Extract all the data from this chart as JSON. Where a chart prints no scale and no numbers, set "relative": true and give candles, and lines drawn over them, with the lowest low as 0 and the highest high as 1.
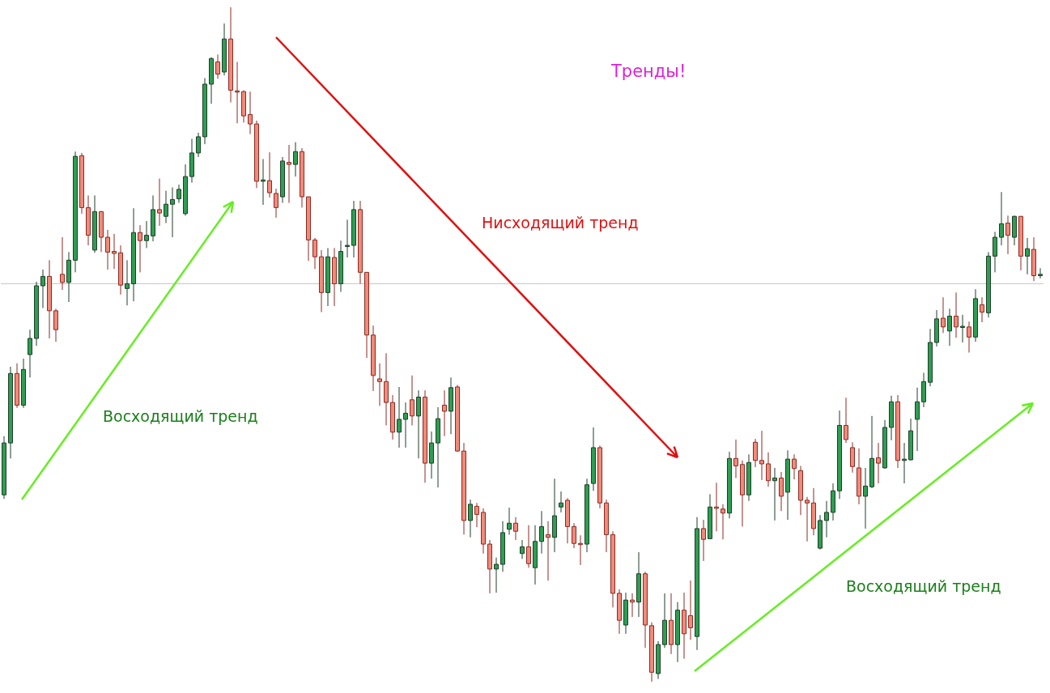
{
  "chart_data": {
    "type": "candlestick",
    "relative": true,
    "title": "Тренды!",
    "annotations": [
      "Нисходящий тренд",
      "Восходящий тренд",
      "Восходящий тренд"
    ],
    "ref_lines": [
      {
        "axis": "y",
        "value": 0.594,
        "color": "#c8c8c8"
      }
    ],
    "categories": [
      null,
      null,
      null,
      null,
      null,
      null,
      null,
      null,
      null,
      null,
      null,
      null,
      null,
      null,
      null,
      null,
      null,
      null,
      null,
      null,
      null,
      null,
      null,
      null,
      null,
      null,
      null,
      null,
      null,
      null,
      null,
      null,
      null,
      null,
      null,
      null,
      null,
      null,
      null,
      null,
      null,
      null,
      null,
      null,
      null,
      null,
      null,
      null,
      null,
      null,
      null,
      null,
      null,
      null,
      null,
      null,
      null,
      null,
      null,
      null,
      null,
      null,
      null,
      null,
      null,
      null,
      null,
      null,
      null,
      null,
      null,
      null,
      null,
      null,
      null,
      null,
      null,
      null,
      null,
      null,
      null,
      null,
      null,
      null,
      null,
      null,
      null,
      null,
      null,
      null,
      null,
      null,
      null,
      null,
      null,
      null,
      null,
      null,
      null,
      null,
      null,
      null,
      null,
      null,
      null,
      null,
      null,
      null,
      null,
      null,
      null,
      null,
      null,
      null,
      null,
      null,
      null,
      null,
      null,
      null,
      null,
      null,
      null,
      null,
      null,
      null,
      null,
      null,
      null,
      null,
      null,
      null,
      null,
      null,
      null,
      null,
      null,
      null,
      null,
      null,
      null,
      null,
      null,
      null,
      null,
      null,
      null,
      null,
      null,
      null,
      null,
      null,
      null,
      null,
      null,
      null,
      null,
      null,
      null,
      null,
      null
    ],
    "ohlc": [
      [
        0.277,
        0.364,
        0.271,
        0.354
      ],
      [
        0.354,
        0.467,
        0.331,
        0.457
      ],
      [
        0.457,
        0.472,
        0.406,
        0.41
      ],
      [
        0.41,
        0.479,
        0.406,
        0.463
      ],
      [
        0.485,
        0.522,
        0.451,
        0.509
      ],
      [
        0.509,
        0.593,
        0.498,
        0.587
      ],
      [
        0.587,
        0.611,
        0.554,
        0.601
      ],
      [
        0.601,
        0.625,
        0.509,
        0.55
      ],
      [
        0.55,
        0.553,
        0.504,
        0.522
      ],
      [
        0.604,
        0.659,
        0.581,
        0.592
      ],
      [
        0.592,
        0.637,
        0.563,
        0.625
      ],
      [
        0.625,
        0.786,
        0.607,
        0.779
      ],
      [
        0.78,
        0.784,
        0.694,
        0.703
      ],
      [
        0.703,
        0.721,
        0.647,
        0.662
      ],
      [
        0.64,
        0.721,
        0.636,
        0.697
      ],
      [
        0.697,
        0.698,
        0.637,
        0.659
      ],
      [
        0.659,
        0.67,
        0.611,
        0.637
      ],
      [
        0.638,
        0.664,
        0.612,
        0.635
      ],
      [
        0.636,
        0.647,
        0.574,
        0.588
      ],
      [
        0.583,
        0.625,
        0.558,
        0.59
      ],
      [
        0.59,
        0.702,
        0.564,
        0.666
      ],
      [
        0.666,
        0.677,
        0.607,
        0.654
      ],
      [
        0.654,
        0.683,
        0.643,
        0.662
      ],
      [
        0.661,
        0.721,
        0.653,
        0.7
      ],
      [
        0.7,
        0.746,
        0.676,
        0.695
      ],
      [
        0.69,
        0.728,
        0.68,
        0.708
      ],
      [
        0.708,
        0.733,
        0.659,
        0.715
      ],
      [
        0.716,
        0.737,
        0.71,
        0.73
      ],
      [
        0.694,
        0.767,
        0.691,
        0.749
      ],
      [
        0.749,
        0.805,
        0.74,
        0.784
      ],
      [
        0.784,
        0.814,
        0.778,
        0.808
      ],
      [
        0.808,
        0.895,
        0.797,
        0.886
      ],
      [
        0.886,
        0.926,
        0.857,
        0.924
      ],
      [
        0.919,
        0.93,
        0.894,
        0.901
      ],
      [
        0.904,
        0.976,
        0.899,
        0.953
      ],
      [
        0.953,
        1.0,
        0.859,
        0.877
      ],
      [
        0.876,
        0.919,
        0.828,
        0.875
      ],
      [
        0.875,
        0.877,
        0.829,
        0.839
      ],
      [
        0.841,
        0.875,
        0.812,
        0.827
      ],
      [
        0.827,
        0.832,
        0.732,
        0.742
      ],
      [
        0.742,
        0.775,
        0.707,
        0.744
      ],
      [
        0.743,
        0.785,
        0.718,
        0.725
      ],
      [
        0.724,
        0.731,
        0.688,
        0.703
      ],
      [
        0.719,
        0.778,
        0.71,
        0.772
      ],
      [
        0.77,
        0.796,
        0.71,
        0.767
      ],
      [
        0.767,
        0.8,
        0.749,
        0.786
      ],
      [
        0.786,
        0.791,
        0.703,
        0.719
      ],
      [
        0.719,
        0.719,
        0.624,
        0.655
      ],
      [
        0.655,
        0.658,
        0.612,
        0.63
      ],
      [
        0.63,
        0.64,
        0.548,
        0.577
      ],
      [
        0.577,
        0.643,
        0.557,
        0.63
      ],
      [
        0.629,
        0.643,
        0.557,
        0.59
      ],
      [
        0.59,
        0.654,
        0.578,
        0.638
      ],
      [
        0.646,
        0.685,
        0.629,
        0.647
      ],
      [
        0.647,
        0.713,
        0.629,
        0.7
      ],
      [
        0.7,
        0.713,
        0.59,
        0.607
      ],
      [
        0.607,
        0.607,
        0.48,
        0.514
      ],
      [
        0.514,
        0.528,
        0.431,
        0.454
      ],
      [
        0.449,
        0.472,
        0.409,
        0.445
      ],
      [
        0.445,
        0.487,
        0.38,
        0.414
      ],
      [
        0.414,
        0.425,
        0.359,
        0.37
      ],
      [
        0.37,
        0.437,
        0.347,
        0.389
      ],
      [
        0.389,
        0.414,
        0.347,
        0.398
      ],
      [
        0.418,
        0.454,
        0.38,
        0.394
      ],
      [
        0.394,
        0.432,
        0.331,
        0.422
      ],
      [
        0.422,
        0.432,
        0.295,
        0.324
      ],
      [
        0.324,
        0.371,
        0.301,
        0.354
      ],
      [
        0.354,
        0.407,
        0.288,
        0.39
      ],
      [
        0.41,
        0.432,
        0.364,
        0.401
      ],
      [
        0.401,
        0.451,
        0.367,
        0.436
      ],
      [
        0.437,
        0.44,
        0.341,
        0.342
      ],
      [
        0.342,
        0.354,
        0.218,
        0.239
      ],
      [
        0.239,
        0.27,
        0.214,
        0.263
      ],
      [
        0.26,
        0.265,
        0.229,
        0.248
      ],
      [
        0.251,
        0.257,
        0.19,
        0.204
      ],
      [
        0.204,
        0.21,
        0.131,
        0.167
      ],
      [
        0.167,
        0.184,
        0.132,
        0.174
      ],
      [
        0.174,
        0.238,
        0.163,
        0.221
      ],
      [
        0.226,
        0.258,
        0.218,
        0.235
      ],
      [
        0.235,
        0.244,
        0.21,
        0.223
      ],
      [
        0.19,
        0.21,
        0.182,
        0.2
      ],
      [
        0.2,
        0.232,
        0.169,
        0.175
      ],
      [
        0.169,
        0.232,
        0.144,
        0.208
      ],
      [
        0.208,
        0.253,
        0.19,
        0.23
      ],
      [
        0.218,
        0.238,
        0.15,
        0.214
      ],
      [
        0.214,
        0.301,
        0.192,
        0.246
      ],
      [
        0.259,
        0.282,
        0.251,
        0.265
      ],
      [
        0.269,
        0.272,
        0.205,
        0.23
      ],
      [
        0.23,
        0.235,
        0.198,
        0.205
      ],
      [
        0.205,
        0.217,
        0.173,
        0.204
      ],
      [
        0.204,
        0.301,
        0.192,
        0.292
      ],
      [
        0.294,
        0.377,
        0.283,
        0.347
      ],
      [
        0.347,
        0.35,
        0.257,
        0.265
      ],
      [
        0.265,
        0.27,
        0.192,
        0.218
      ],
      [
        0.218,
        0.223,
        0.11,
        0.131
      ],
      [
        0.131,
        0.137,
        0.071,
        0.091
      ],
      [
        0.084,
        0.132,
        0.071,
        0.121
      ],
      [
        0.121,
        0.131,
        0.096,
        0.118
      ],
      [
        0.118,
        0.192,
        0.096,
        0.16
      ],
      [
        0.16,
        0.163,
        0.05,
        0.084
      ],
      [
        0.083,
        0.088,
        0,
        0.014
      ],
      [
        0.012,
        0.06,
        0.004,
        0.055
      ],
      [
        0.055,
        0.131,
        0.05,
        0.091
      ],
      [
        0.091,
        0.131,
        0.041,
        0.055
      ],
      [
        0.055,
        0.118,
        0.029,
        0.106
      ],
      [
        0.106,
        0.132,
        0.034,
        0.071
      ],
      [
        0.098,
        0.15,
        0.062,
        0.08
      ],
      [
        0.067,
        0.244,
        0.047,
        0.227
      ],
      [
        0.227,
        0.24,
        0.179,
        0.211
      ],
      [
        0.212,
        0.278,
        0.212,
        0.259
      ],
      [
        0.259,
        0.295,
        0.223,
        0.257
      ],
      [
        0.256,
        0.263,
        0.211,
        0.25
      ],
      [
        0.25,
        0.341,
        0.242,
        0.331
      ],
      [
        0.331,
        0.359,
        0.302,
        0.32
      ],
      [
        0.322,
        0.328,
        0.23,
        0.277
      ],
      [
        0.277,
        0.337,
        0.268,
        0.325
      ],
      [
        0.355,
        0.36,
        0.318,
        0.328
      ],
      [
        0.328,
        0.372,
        0.299,
        0.323
      ],
      [
        0.323,
        0.34,
        0.289,
        0.298
      ],
      [
        0.298,
        0.317,
        0.239,
        0.302
      ],
      [
        0.302,
        0.311,
        0.253,
        0.275
      ],
      [
        0.281,
        0.343,
        0.24,
        0.33
      ],
      [
        0.33,
        0.337,
        0.3,
        0.316
      ],
      [
        0.313,
        0.32,
        0.247,
        0.269
      ],
      [
        0.269,
        0.274,
        0.208,
        0.265
      ],
      [
        0.265,
        0.287,
        0.217,
        0.227
      ],
      [
        0.198,
        0.247,
        0.196,
        0.239
      ],
      [
        0.239,
        0.268,
        0.214,
        0.251
      ],
      [
        0.251,
        0.294,
        0.239,
        0.283
      ],
      [
        0.283,
        0.402,
        0.271,
        0.38
      ],
      [
        0.38,
        0.421,
        0.354,
        0.359
      ],
      [
        0.347,
        0.355,
        0.31,
        0.319
      ],
      [
        0.317,
        0.346,
        0.263,
        0.275
      ],
      [
        0.275,
        0.317,
        0.227,
        0.29
      ],
      [
        0.289,
        0.394,
        0.287,
        0.331
      ],
      [
        0.332,
        0.354,
        0.294,
        0.324
      ],
      [
        0.317,
        0.388,
        0.316,
        0.377
      ],
      [
        0.377,
        0.424,
        0.358,
        0.415
      ],
      [
        0.415,
        0.425,
        0.317,
        0.328
      ],
      [
        0.328,
        0.354,
        0.294,
        0.33
      ],
      [
        0.329,
        0.39,
        0.328,
        0.372
      ],
      [
        0.389,
        0.436,
        0.342,
        0.415
      ],
      [
        0.415,
        0.458,
        0.407,
        0.445
      ],
      [
        0.444,
        0.523,
        0.438,
        0.503
      ],
      [
        0.503,
        0.551,
        0.497,
        0.538
      ],
      [
        0.539,
        0.57,
        0.517,
        0.526
      ],
      [
        0.52,
        0.553,
        0.498,
        0.542
      ],
      [
        0.542,
        0.577,
        0.51,
        0.526
      ],
      [
        0.526,
        0.544,
        0.503,
        0.527
      ],
      [
        0.526,
        0.534,
        0.488,
        0.511
      ],
      [
        0.511,
        0.582,
        0.504,
        0.568
      ],
      [
        0.559,
        0.57,
        0.533,
        0.548
      ],
      [
        0.547,
        0.637,
        0.54,
        0.631
      ],
      [
        0.631,
        0.667,
        0.607,
        0.659
      ],
      [
        0.659,
        0.726,
        0.647,
        0.679
      ],
      [
        0.68,
        0.691,
        0.634,
        0.662
      ],
      [
        0.659,
        0.691,
        0.647,
        0.69
      ],
      [
        0.69,
        0.69,
        0.61,
        0.631
      ],
      [
        0.631,
        0.658,
        0.604,
        0.642
      ],
      [
        0.641,
        0.659,
        0.594,
        0.602
      ],
      [
        0.602,
        0.613,
        0.598,
        0.604
      ]
    ]
  }
}
